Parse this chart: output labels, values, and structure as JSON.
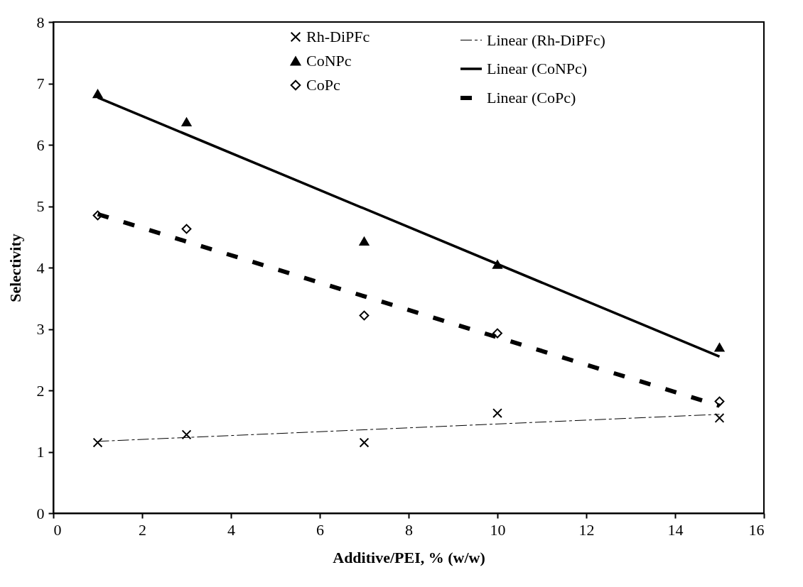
{
  "chart_data": {
    "type": "scatter",
    "xlabel": "Additive/PEI, % (w/w)",
    "ylabel": "Selectivity",
    "xlim": [
      0,
      16
    ],
    "xticks": [
      0,
      2,
      4,
      6,
      8,
      10,
      12,
      14,
      16
    ],
    "ylim": [
      0,
      8
    ],
    "yticks": [
      0,
      1,
      2,
      3,
      4,
      5,
      6,
      7,
      8
    ],
    "grid": false,
    "legend": "top right",
    "series": [
      {
        "name": "Rh-DiPFc",
        "type": "scatter",
        "marker": "cross",
        "color": "#000000",
        "x": [
          1,
          3,
          7,
          10,
          15
        ],
        "values": [
          1.15,
          1.28,
          1.15,
          1.63,
          1.55
        ]
      },
      {
        "name": "CoNPc",
        "type": "scatter",
        "marker": "triangle",
        "color": "#000000",
        "x": [
          1,
          3,
          7,
          10,
          15
        ],
        "values": [
          6.83,
          6.37,
          4.43,
          4.05,
          2.7
        ]
      },
      {
        "name": "CoPc",
        "type": "scatter",
        "marker": "diamond",
        "color": "#000000",
        "x": [
          1,
          3,
          7,
          10,
          15
        ],
        "values": [
          4.85,
          4.63,
          3.22,
          2.93,
          1.82
        ]
      },
      {
        "name": "Linear (Rh-DiPFc)",
        "type": "line",
        "marker": "none",
        "line_style": "dashed",
        "color": "#000000",
        "x": [
          1,
          15
        ],
        "values": [
          1.17,
          1.61
        ]
      },
      {
        "name": "Linear (CoNPc)",
        "type": "line",
        "marker": "none",
        "line_style": "solid",
        "color": "#000000",
        "x": [
          1,
          15
        ],
        "values": [
          6.77,
          2.55
        ]
      },
      {
        "name": "Linear (CoPc)",
        "type": "line",
        "marker": "none",
        "line_style": "dashed",
        "color": "#000000",
        "x": [
          1,
          15
        ],
        "values": [
          4.87,
          1.75
        ]
      }
    ]
  }
}
